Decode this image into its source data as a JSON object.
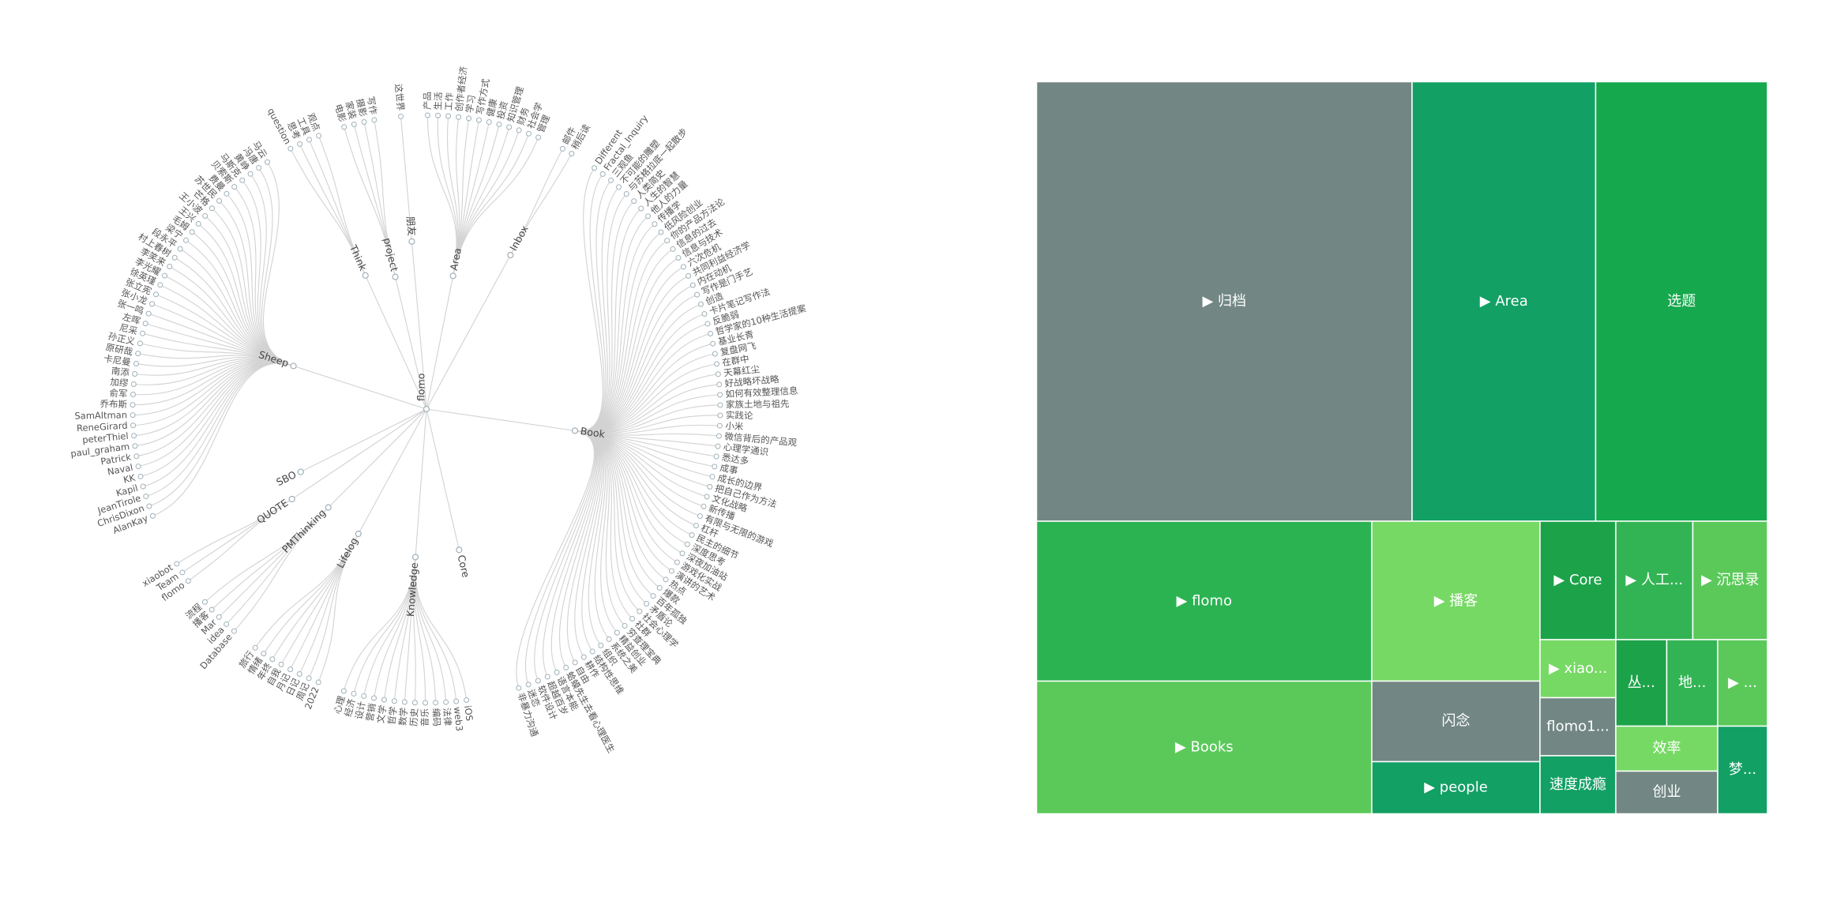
{
  "tree": {
    "label": "flomo",
    "children": [
      {
        "label": "Area",
        "children": [
          "产品",
          "生活",
          "工作",
          "创作者经济",
          "学习",
          "写作方式",
          "健康",
          "投资",
          "知识管理",
          "财务",
          "社会学",
          "管理"
        ]
      },
      {
        "label": "Inbox",
        "children": [
          "邮件",
          "稍后读"
        ]
      },
      {
        "label": "Book",
        "children": [
          "Different",
          "Fractal_Inquiry",
          "三观鱼",
          "不可能的雕塑",
          "与苏格拉底一起散步",
          "人类简史",
          "人生的智慧",
          "他人的力量",
          "传播学",
          "低风险创业",
          "你的产品方法论",
          "信息的过去",
          "信息与技术",
          "六次危机",
          "共同利益经济学",
          "内在动机",
          "写作是门手艺",
          "创造",
          "卡片笔记写作法",
          "反脆弱",
          "哲学家的10种生活提案",
          "基业长青",
          "复盘网飞",
          "在群中",
          "天幕红尘",
          "好战略坏战略",
          "如何有效整理信息",
          "家族土地与祖先",
          "实践论",
          "小米",
          "微信背后的产品观",
          "心理学通识",
          "悉达多",
          "成事",
          "成长的边界",
          "把自己作为方法",
          "文化战略",
          "新传播",
          "有限与无限的游戏",
          "杠杆",
          "民主的细节",
          "深度思考",
          "深夜加油站",
          "游戏化实战",
          "演讲的艺术",
          "热点",
          "爆款",
          "百年孤独",
          "矛盾论",
          "社会心理学",
          "社群",
          "穷查理宝典",
          "精益创业",
          "系统之美",
          "组织",
          "结构性思维",
          "耕作",
          "自由",
          "蛤蟆先生去看心理医生",
          "语言本能",
          "超越百岁",
          "软件设计",
          "迷恋",
          "非暴力沟通"
        ]
      },
      {
        "label": "Core",
        "children": []
      },
      {
        "label": "Knowledge",
        "children": [
          "iOS",
          "web3",
          "法律",
          "编码",
          "音乐",
          "历史",
          "数学",
          "哲学",
          "文学",
          "营销",
          "设计",
          "经济",
          "心理"
        ]
      },
      {
        "label": "Lifelog",
        "children": [
          "2022",
          "周记",
          "日记",
          "月记",
          "自我",
          "年终",
          "情绪",
          "旅行"
        ]
      },
      {
        "label": "PMThinking",
        "children": [
          "Database",
          "idea",
          "Mar",
          "播客",
          "流程"
        ]
      },
      {
        "label": "QUOTE",
        "children": [
          "flomo",
          "Team",
          "xiaobot"
        ]
      },
      {
        "label": "SBO",
        "children": []
      },
      {
        "label": "Sheep",
        "children": [
          "AlanKay",
          "ChrisDixon",
          "JeanTirole",
          "Kapil",
          "KK",
          "Naval",
          "Patrick",
          "paul_graham",
          "peterThiel",
          "ReneGirard",
          "SamAltman",
          "乔布斯",
          "俞军",
          "加缪",
          "南添",
          "卡尼曼",
          "原研哉",
          "孙正义",
          "尼采",
          "左晖",
          "张一鸣",
          "张小龙",
          "张立宪",
          "徐英瑾",
          "李光耀",
          "李笑来",
          "村上春树",
          "段永平",
          "梁宁",
          "毛姆",
          "王兴",
          "王小波",
          "芒格",
          "苏世民",
          "费曼",
          "贝索斯",
          "马斯克",
          "黄峥",
          "冯唐",
          "马云"
        ]
      },
      {
        "label": "Think",
        "children": [
          "question",
          "思考",
          "工具",
          "观点"
        ]
      },
      {
        "label": "project",
        "children": [
          "电影",
          "家装",
          "摄影",
          "写作"
        ]
      },
      {
        "label": "朋友",
        "children": [
          "这世界"
        ]
      }
    ]
  },
  "treemap": {
    "cells": [
      {
        "label": "▶ 归档"
      },
      {
        "label": "▶ Area"
      },
      {
        "label": "选题"
      },
      {
        "label": "▶ flomo"
      },
      {
        "label": "▶ Books"
      },
      {
        "label": "▶ 播客"
      },
      {
        "label": "闪念"
      },
      {
        "label": "▶ people"
      },
      {
        "label": "▶ Core"
      },
      {
        "label": "▶ 人工..."
      },
      {
        "label": "▶ 沉思录"
      },
      {
        "label": "▶ xiao..."
      },
      {
        "label": "flomo1..."
      },
      {
        "label": "速度成瘾"
      },
      {
        "label": "丛..."
      },
      {
        "label": "地..."
      },
      {
        "label": "▶ ..."
      },
      {
        "label": "效率"
      },
      {
        "label": "创业"
      },
      {
        "label": "梦..."
      }
    ]
  }
}
